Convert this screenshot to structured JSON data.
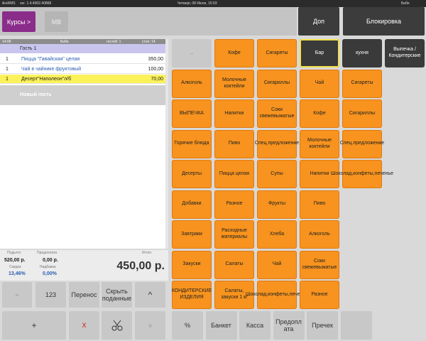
{
  "titlebar": {
    "app": "iikoRMS",
    "version": "ver. 1.4.4002.40868",
    "date": "Четверг, 08 Июля, 15:03",
    "user": "Бибе"
  },
  "toolbar": {
    "courses": "Курсы >",
    "mv": "МВ",
    "extra": "Доп",
    "lock": "Блокировка"
  },
  "order": {
    "header": [
      "14:06",
      "Бибе",
      "гостей: 1",
      "стол: 14"
    ],
    "guest": "Гость 1",
    "items": [
      [
        "1",
        "Пицца \"Гавайская\" целая",
        "350,00"
      ],
      [
        "1",
        "Чай в чайнике фруктовый",
        "100,00"
      ],
      [
        "1",
        "Десерт\"Наполеон\"л/б",
        "70,00"
      ]
    ],
    "new_guest": "Новый гость"
  },
  "summary": {
    "subtotal_label": "Подытог",
    "prepay_label": "Предоплата",
    "total_label": "Итого",
    "subtotal": "520,00 р.",
    "prepay": "0,00 р.",
    "discount_label": "Скидка",
    "markup_label": "Надбавка",
    "discount": "13,46%",
    "markup": "0,00%",
    "total": "450,00 р."
  },
  "left_buttons": {
    "minus": "−",
    "numpad": "123",
    "transfer": "Перенос",
    "hide_served": "Скрыть поданные",
    "up": "^",
    "plus": "+",
    "delete": "X",
    "down": "v"
  },
  "menu": {
    "top_row": [
      "..",
      "Кофе",
      "Сигареты",
      "Бар",
      "кухня",
      "Выпечка / Кондитерские"
    ],
    "rows": [
      [
        "Алкоголь",
        "Молочные коктейли",
        "Сигариллы",
        "Чай",
        "Сигареты"
      ],
      [
        "ВЫПЕЧКА",
        "Напитки",
        "Соки свежевыжатые",
        "Кофе",
        "Сигариллы"
      ],
      [
        "Горячие блюда",
        "Пиво",
        "Спец.предложение",
        "Молочные коктейли",
        "Спец.предложение"
      ],
      [
        "Десерты",
        "Пицца целая",
        "Супы",
        "Напитки",
        "Шоколад,конфеты,печенье"
      ],
      [
        "Добавки",
        "Разное",
        "Фрукты",
        "Пиво"
      ],
      [
        "Завтраки",
        "Расходные материалы",
        "Хлеба",
        "Алкоголь"
      ],
      [
        "Закуски",
        "Салаты",
        "Чай",
        "Соки свежевыжатые"
      ],
      [
        "КОНДИТЕРСКИЕ ИЗДЕЛИЯ",
        "Салаты, закуски 1 кг",
        "Шоколад,конфеты,печенье",
        "Разное"
      ]
    ]
  },
  "bottom_buttons": [
    "%",
    "Банкет",
    "Касса",
    "Предоплата",
    "Пречек"
  ]
}
